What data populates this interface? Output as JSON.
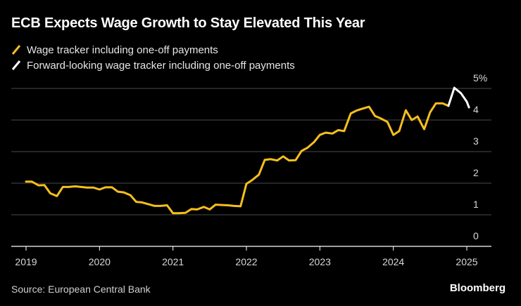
{
  "title": "ECB Expects Wage Growth to Stay Elevated This Year",
  "footer": {
    "source": "Source: European Central Bank",
    "brand": "Bloomberg"
  },
  "chart_data": {
    "type": "line",
    "title": "ECB Expects Wage Growth to Stay Elevated This Year",
    "xlabel": "",
    "ylabel": "",
    "xlim": [
      2019.0,
      2025.25
    ],
    "ylim": [
      0,
      5
    ],
    "x_ticks": [
      "2019",
      "2020",
      "2021",
      "2022",
      "2023",
      "2024",
      "2025"
    ],
    "y_ticks": [
      "0",
      "1",
      "2",
      "3",
      "4",
      "5%"
    ],
    "grid": "horizontal",
    "legend": "top-left",
    "series": [
      {
        "name": "Wage tracker including one-off payments",
        "color": "#F5BF1D",
        "points": [
          [
            2019.0,
            2.05
          ],
          [
            2019.08,
            2.05
          ],
          [
            2019.17,
            1.93
          ],
          [
            2019.25,
            1.94
          ],
          [
            2019.33,
            1.68
          ],
          [
            2019.42,
            1.59
          ],
          [
            2019.5,
            1.88
          ],
          [
            2019.58,
            1.88
          ],
          [
            2019.67,
            1.9
          ],
          [
            2019.75,
            1.88
          ],
          [
            2019.83,
            1.86
          ],
          [
            2019.92,
            1.86
          ],
          [
            2020.0,
            1.8
          ],
          [
            2020.08,
            1.87
          ],
          [
            2020.17,
            1.87
          ],
          [
            2020.25,
            1.73
          ],
          [
            2020.33,
            1.71
          ],
          [
            2020.42,
            1.62
          ],
          [
            2020.5,
            1.41
          ],
          [
            2020.58,
            1.39
          ],
          [
            2020.67,
            1.33
          ],
          [
            2020.75,
            1.28
          ],
          [
            2020.83,
            1.28
          ],
          [
            2020.92,
            1.3
          ],
          [
            2021.0,
            1.05
          ],
          [
            2021.08,
            1.05
          ],
          [
            2021.17,
            1.06
          ],
          [
            2021.25,
            1.18
          ],
          [
            2021.33,
            1.17
          ],
          [
            2021.42,
            1.25
          ],
          [
            2021.5,
            1.17
          ],
          [
            2021.58,
            1.32
          ],
          [
            2021.67,
            1.31
          ],
          [
            2021.75,
            1.3
          ],
          [
            2021.83,
            1.28
          ],
          [
            2021.92,
            1.27
          ],
          [
            2022.0,
            1.98
          ],
          [
            2022.08,
            2.1
          ],
          [
            2022.17,
            2.27
          ],
          [
            2022.25,
            2.74
          ],
          [
            2022.33,
            2.76
          ],
          [
            2022.42,
            2.72
          ],
          [
            2022.5,
            2.85
          ],
          [
            2022.58,
            2.72
          ],
          [
            2022.67,
            2.73
          ],
          [
            2022.75,
            3.02
          ],
          [
            2022.83,
            3.12
          ],
          [
            2022.92,
            3.3
          ],
          [
            2023.0,
            3.53
          ],
          [
            2023.08,
            3.6
          ],
          [
            2023.17,
            3.57
          ],
          [
            2023.25,
            3.68
          ],
          [
            2023.33,
            3.65
          ],
          [
            2023.42,
            4.21
          ],
          [
            2023.5,
            4.3
          ],
          [
            2023.58,
            4.36
          ],
          [
            2023.67,
            4.42
          ],
          [
            2023.75,
            4.13
          ],
          [
            2023.83,
            4.05
          ],
          [
            2023.92,
            3.94
          ],
          [
            2024.0,
            3.53
          ],
          [
            2024.08,
            3.65
          ],
          [
            2024.17,
            4.31
          ],
          [
            2024.25,
            4.0
          ],
          [
            2024.33,
            4.11
          ],
          [
            2024.42,
            3.71
          ],
          [
            2024.5,
            4.24
          ],
          [
            2024.58,
            4.53
          ],
          [
            2024.67,
            4.53
          ],
          [
            2024.75,
            4.45
          ]
        ]
      },
      {
        "name": "Forward-looking wage tracker including one-off payments",
        "color": "#FFFFFF",
        "points": [
          [
            2024.75,
            4.45
          ],
          [
            2024.83,
            5.02
          ],
          [
            2024.92,
            4.85
          ],
          [
            2025.0,
            4.58
          ],
          [
            2025.03,
            4.4
          ]
        ]
      }
    ]
  }
}
